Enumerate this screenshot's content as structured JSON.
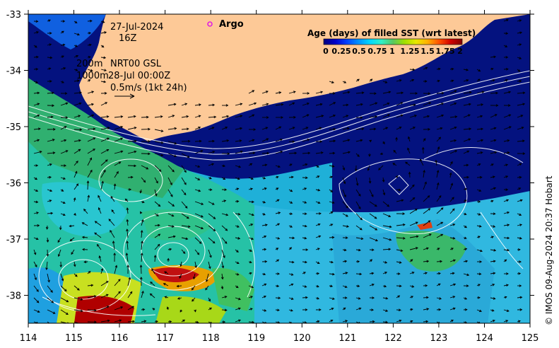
{
  "map": {
    "lon_range": [
      114,
      125
    ],
    "lat_range": [
      -38.5,
      -33
    ],
    "x_ticks": [
      "114",
      "115",
      "116",
      "117",
      "118",
      "119",
      "120",
      "121",
      "122",
      "123",
      "124",
      "125"
    ],
    "y_ticks": [
      "-33",
      "-34",
      "-35",
      "-36",
      "-37",
      "-38"
    ],
    "land_color": "#fdc997",
    "contour_color": "#ffffff",
    "vector_color": "#000000"
  },
  "annotations": {
    "date_line1": "27-Jul-2024",
    "date_line2": "16Z",
    "argo_label": "Argo",
    "argo_marker_color": "#e020e0",
    "depth_200": "200m",
    "depth_1000": "1000m",
    "product": "NRT00 GSL",
    "product_time": "28-Jul 00:00Z",
    "scale_label": "0.5m/s (1kt 24h)"
  },
  "colorbar": {
    "title": "Age (days) of filled SST (wrt latest)",
    "tick_labels": [
      "0",
      "0.25",
      "0.5",
      "0.75",
      "1",
      "1.25",
      "1.5",
      "1.75",
      "2"
    ],
    "colors": [
      "#00007f",
      "#0000c8",
      "#0040ff",
      "#0090ff",
      "#00d8ff",
      "#30f0c8",
      "#58c860",
      "#a0e000",
      "#e8e800",
      "#ffb000",
      "#ff5000",
      "#d00000",
      "#800000"
    ]
  },
  "credit": "© IMOS 09-Aug-2024 20:37 Hobart"
}
